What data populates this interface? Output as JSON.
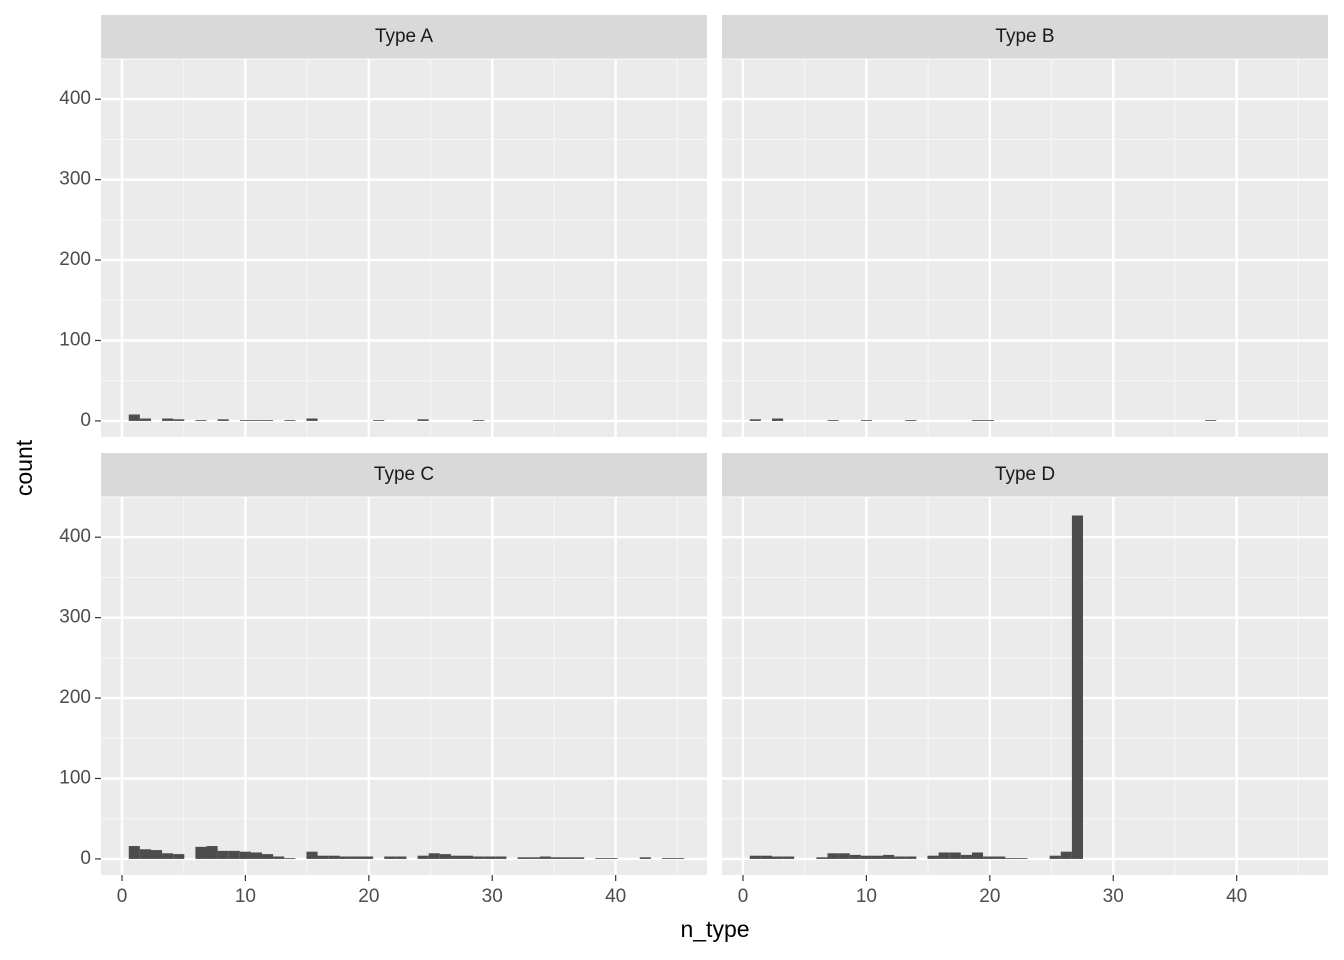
{
  "chart_data": {
    "type": "histogram",
    "xlabel": "n_type",
    "ylabel": "count",
    "xlim": [
      -1.7,
      47.4
    ],
    "ylim": [
      -20,
      450
    ],
    "xticks": [
      0,
      10,
      20,
      30,
      40
    ],
    "yticks": [
      0,
      100,
      200,
      300,
      400
    ],
    "grid": true,
    "color": "#4d4d4d",
    "bins": [
      0.55,
      1.45,
      2.35,
      3.25,
      4.15,
      5.05,
      5.95,
      6.85,
      7.75,
      8.65,
      9.55,
      10.45,
      11.35,
      12.25,
      13.15,
      14.05,
      14.95,
      15.85,
      16.75,
      17.65,
      18.55,
      19.45,
      20.35,
      21.25,
      22.15,
      23.05,
      23.95,
      24.85,
      25.75,
      26.65,
      27.55,
      28.45,
      29.35,
      30.25,
      31.15,
      32.05,
      32.95,
      33.85,
      34.75,
      35.65,
      36.55,
      37.45,
      38.35,
      39.25,
      40.15,
      41.05,
      41.95,
      42.85,
      43.75,
      44.65,
      45.55
    ],
    "series": [
      {
        "name": "Type A",
        "values": [
          8,
          3,
          0,
          3,
          2,
          0,
          1,
          0,
          2,
          0,
          1,
          1,
          1,
          0,
          1,
          0,
          3,
          0,
          0,
          0,
          0,
          0,
          1,
          0,
          0,
          0,
          2,
          0,
          0,
          0,
          0,
          1,
          0,
          0,
          0,
          0,
          0,
          0,
          0,
          0,
          0,
          0,
          0,
          0,
          0,
          0,
          0,
          0,
          0,
          0
        ]
      },
      {
        "name": "Type B",
        "values": [
          2,
          0,
          3,
          0,
          0,
          0,
          0,
          1,
          0,
          0,
          1,
          0,
          0,
          0,
          1,
          0,
          0,
          0,
          0,
          0,
          1,
          1,
          0,
          0,
          0,
          0,
          0,
          0,
          0,
          0,
          0,
          0,
          0,
          0,
          0,
          0,
          0,
          0,
          0,
          0,
          0,
          1,
          0,
          0,
          0,
          0,
          0,
          0,
          0,
          0
        ]
      },
      {
        "name": "Type C",
        "values": [
          16,
          12,
          11,
          7,
          6,
          0,
          15,
          16,
          10,
          10,
          9,
          8,
          6,
          3,
          1,
          0,
          9,
          4,
          4,
          3,
          3,
          3,
          0,
          3,
          3,
          0,
          4,
          7,
          6,
          4,
          4,
          3,
          3,
          3,
          0,
          2,
          2,
          3,
          2,
          2,
          2,
          0,
          1,
          1,
          0,
          0,
          2,
          0,
          1,
          1
        ]
      },
      {
        "name": "Type D",
        "values": [
          4,
          4,
          3,
          3,
          0,
          0,
          2,
          7,
          7,
          5,
          4,
          4,
          5,
          3,
          3,
          0,
          4,
          8,
          8,
          5,
          8,
          3,
          3,
          1,
          1,
          0,
          0,
          4,
          9,
          427,
          0,
          0,
          0,
          0,
          0,
          0,
          0,
          0,
          0,
          0,
          0,
          0,
          0,
          0,
          0,
          0,
          0,
          0,
          0,
          0
        ]
      }
    ]
  }
}
